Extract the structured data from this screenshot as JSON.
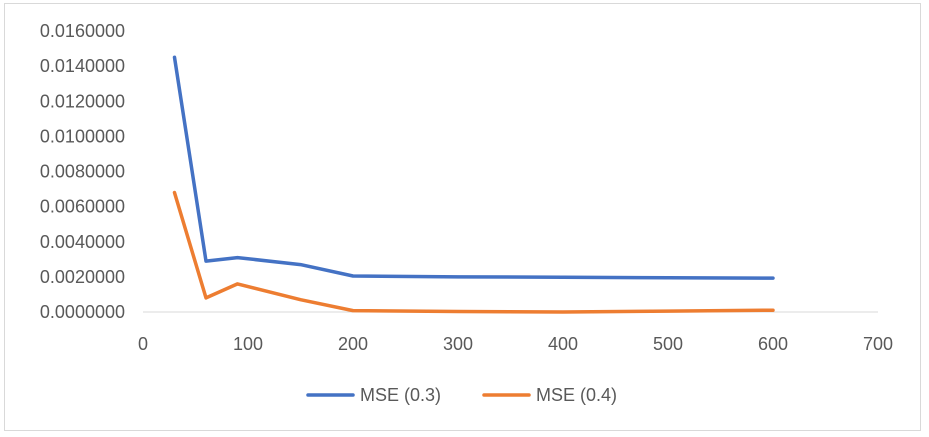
{
  "chart_data": {
    "type": "line",
    "title": "",
    "xlabel": "",
    "ylabel": "",
    "xlim": [
      0,
      700
    ],
    "ylim": [
      0,
      0.016
    ],
    "x_ticks": [
      "0",
      "100",
      "200",
      "300",
      "400",
      "500",
      "600",
      "700"
    ],
    "y_ticks": [
      "0.0000000",
      "0.0020000",
      "0.0040000",
      "0.0060000",
      "0.0080000",
      "0.0100000",
      "0.0120000",
      "0.0140000",
      "0.0160000"
    ],
    "x_tick_values": [
      0,
      100,
      200,
      300,
      400,
      500,
      600,
      700
    ],
    "y_tick_values": [
      0,
      0.002,
      0.004,
      0.006,
      0.008,
      0.01,
      0.012,
      0.014,
      0.016
    ],
    "grid": false,
    "legend_position": "bottom",
    "series": [
      {
        "name": "MSE (0.3)",
        "color": "#4472c4",
        "x": [
          30,
          60,
          90,
          150,
          200,
          300,
          400,
          500,
          600
        ],
        "y": [
          0.0145,
          0.0029,
          0.0031,
          0.0027,
          0.00205,
          0.002,
          0.00198,
          0.00195,
          0.00193
        ]
      },
      {
        "name": "MSE (0.4)",
        "color": "#ed7d31",
        "x": [
          30,
          60,
          90,
          150,
          200,
          300,
          400,
          500,
          600
        ],
        "y": [
          0.0068,
          0.0008,
          0.0016,
          0.0007,
          8e-05,
          3e-05,
          0.0,
          5e-05,
          0.0001
        ]
      }
    ]
  }
}
